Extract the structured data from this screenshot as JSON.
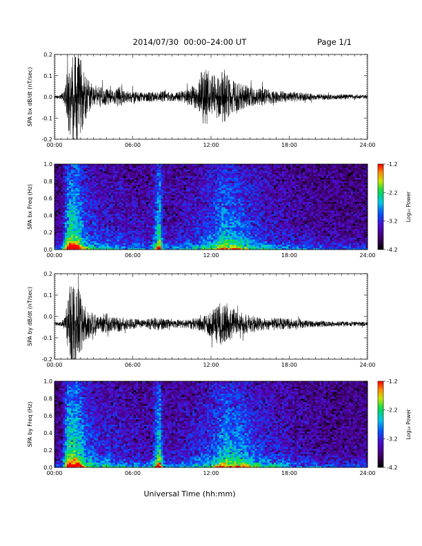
{
  "header": {
    "title": "2014/07/30  00:00–24:00 UT",
    "page": "Page 1/1"
  },
  "footer": {
    "xlabel": "Universal Time (hh:mm)"
  },
  "chart_data": [
    {
      "type": "line",
      "ylabel": "SPA bx dB/dt (nT/sec)",
      "xlim_hours": [
        0,
        24
      ],
      "x_ticks": [
        "00:00",
        "06:00",
        "12:00",
        "18:00",
        "24:00"
      ],
      "ylim": [
        -0.2,
        0.2
      ],
      "y_ticks": [
        "-0.2",
        "-0.1",
        "0.0",
        "0.1",
        "0.2"
      ],
      "baseline": 0.0,
      "envelope": {
        "hours": [
          0,
          0.5,
          0.8,
          1.0,
          1.3,
          1.6,
          2.0,
          2.3,
          2.6,
          3.0,
          3.5,
          4.0,
          4.5,
          5.0,
          5.5,
          6.0,
          7.0,
          7.5,
          8.0,
          8.5,
          9.0,
          10.0,
          10.5,
          11.0,
          11.3,
          11.7,
          12.0,
          12.5,
          13.0,
          13.5,
          14.0,
          14.5,
          15.0,
          15.5,
          16.0,
          17.0,
          18.0,
          20.0,
          22.0,
          24.0
        ],
        "amplitude": [
          0.008,
          0.01,
          0.04,
          0.15,
          0.22,
          0.22,
          0.2,
          0.12,
          0.08,
          0.06,
          0.05,
          0.04,
          0.03,
          0.05,
          0.025,
          0.03,
          0.02,
          0.025,
          0.02,
          0.03,
          0.02,
          0.03,
          0.05,
          0.06,
          0.13,
          0.13,
          0.11,
          0.1,
          0.13,
          0.09,
          0.07,
          0.06,
          0.05,
          0.04,
          0.04,
          0.03,
          0.025,
          0.015,
          0.012,
          0.01
        ]
      }
    },
    {
      "type": "heatmap",
      "ylabel": "SPA bx Freq (Hz)",
      "xlim_hours": [
        0,
        24
      ],
      "x_ticks": [
        "00:00",
        "06:00",
        "12:00",
        "18:00",
        "24:00"
      ],
      "ylim": [
        0.0,
        1.0
      ],
      "y_ticks": [
        "0.0",
        "0.2",
        "0.4",
        "0.6",
        "0.8",
        "1.0"
      ],
      "colorbar": {
        "label": "Log₁₀ Power",
        "range": [
          -4.2,
          -1.2
        ],
        "ticks": [
          "-1.2",
          "-2.2",
          "-3.2",
          "-4.2"
        ]
      },
      "activity": {
        "hours": [
          0,
          0.5,
          0.8,
          1.0,
          1.3,
          1.6,
          2.0,
          2.3,
          2.6,
          3.0,
          3.5,
          4.0,
          4.5,
          5.0,
          5.5,
          6.0,
          7.0,
          7.5,
          8.0,
          8.1,
          8.3,
          8.5,
          9.0,
          10.0,
          10.5,
          11.0,
          11.5,
          12.0,
          12.5,
          13.0,
          13.5,
          14.0,
          14.5,
          15.0,
          15.5,
          16.0,
          17.0,
          18.0,
          20.0,
          22.0,
          24.0
        ],
        "level": [
          0.1,
          0.15,
          0.45,
          0.9,
          1.0,
          0.95,
          0.75,
          0.5,
          0.45,
          0.4,
          0.3,
          0.35,
          0.25,
          0.3,
          0.2,
          0.25,
          0.2,
          0.25,
          0.9,
          0.9,
          0.3,
          0.25,
          0.2,
          0.25,
          0.3,
          0.35,
          0.4,
          0.45,
          0.6,
          0.7,
          0.65,
          0.6,
          0.55,
          0.45,
          0.4,
          0.35,
          0.25,
          0.2,
          0.15,
          0.1,
          0.1
        ]
      }
    },
    {
      "type": "line",
      "ylabel": "SPA by dB/dt (nT/sec)",
      "xlim_hours": [
        0,
        24
      ],
      "x_ticks": [
        "00:00",
        "06:00",
        "12:00",
        "18:00",
        "24:00"
      ],
      "ylim": [
        -0.2,
        0.2
      ],
      "y_ticks": [
        "-0.2",
        "-0.1",
        "0.0",
        "0.1",
        "0.2"
      ],
      "baseline": -0.035,
      "envelope": {
        "hours": [
          0,
          0.5,
          0.8,
          1.0,
          1.3,
          1.6,
          2.0,
          2.3,
          2.6,
          3.0,
          3.5,
          4.0,
          4.5,
          5.0,
          5.5,
          6.0,
          7.0,
          7.5,
          8.0,
          8.5,
          9.0,
          10.0,
          11.0,
          11.5,
          12.0,
          12.5,
          13.0,
          13.5,
          14.0,
          14.5,
          15.0,
          16.0,
          17.0,
          18.0,
          20.0,
          22.0,
          24.0
        ],
        "amplitude": [
          0.008,
          0.01,
          0.03,
          0.12,
          0.22,
          0.2,
          0.14,
          0.09,
          0.07,
          0.05,
          0.04,
          0.05,
          0.03,
          0.04,
          0.025,
          0.025,
          0.02,
          0.03,
          0.03,
          0.025,
          0.02,
          0.02,
          0.03,
          0.04,
          0.06,
          0.09,
          0.11,
          0.08,
          0.06,
          0.05,
          0.04,
          0.03,
          0.03,
          0.025,
          0.015,
          0.012,
          0.01
        ]
      }
    },
    {
      "type": "heatmap",
      "ylabel": "SPA by Freq (Hz)",
      "xlim_hours": [
        0,
        24
      ],
      "x_ticks": [
        "00:00",
        "06:00",
        "12:00",
        "18:00",
        "24:00"
      ],
      "ylim": [
        0.0,
        1.0
      ],
      "y_ticks": [
        "0.0",
        "0.2",
        "0.4",
        "0.6",
        "0.8",
        "1.0"
      ],
      "colorbar": {
        "label": "Log₁₀ Power",
        "range": [
          -4.2,
          -1.2
        ],
        "ticks": [
          "-1.2",
          "-2.2",
          "-3.2",
          "-4.2"
        ]
      },
      "activity": {
        "hours": [
          0,
          0.5,
          0.8,
          1.0,
          1.3,
          1.6,
          2.0,
          2.3,
          2.6,
          3.0,
          3.5,
          4.0,
          4.5,
          5.0,
          5.5,
          6.0,
          7.0,
          7.5,
          8.0,
          8.1,
          8.3,
          8.5,
          9.0,
          10.0,
          10.5,
          11.0,
          11.5,
          12.0,
          12.5,
          13.0,
          13.5,
          14.0,
          14.5,
          15.0,
          15.5,
          16.0,
          17.0,
          18.0,
          20.0,
          22.0,
          24.0
        ],
        "level": [
          0.1,
          0.15,
          0.5,
          0.95,
          1.0,
          1.0,
          0.8,
          0.55,
          0.5,
          0.45,
          0.35,
          0.4,
          0.3,
          0.3,
          0.25,
          0.25,
          0.2,
          0.25,
          0.95,
          0.95,
          0.3,
          0.25,
          0.2,
          0.25,
          0.3,
          0.35,
          0.4,
          0.45,
          0.6,
          0.75,
          0.7,
          0.65,
          0.6,
          0.5,
          0.45,
          0.4,
          0.3,
          0.25,
          0.15,
          0.1,
          0.1
        ]
      }
    }
  ]
}
